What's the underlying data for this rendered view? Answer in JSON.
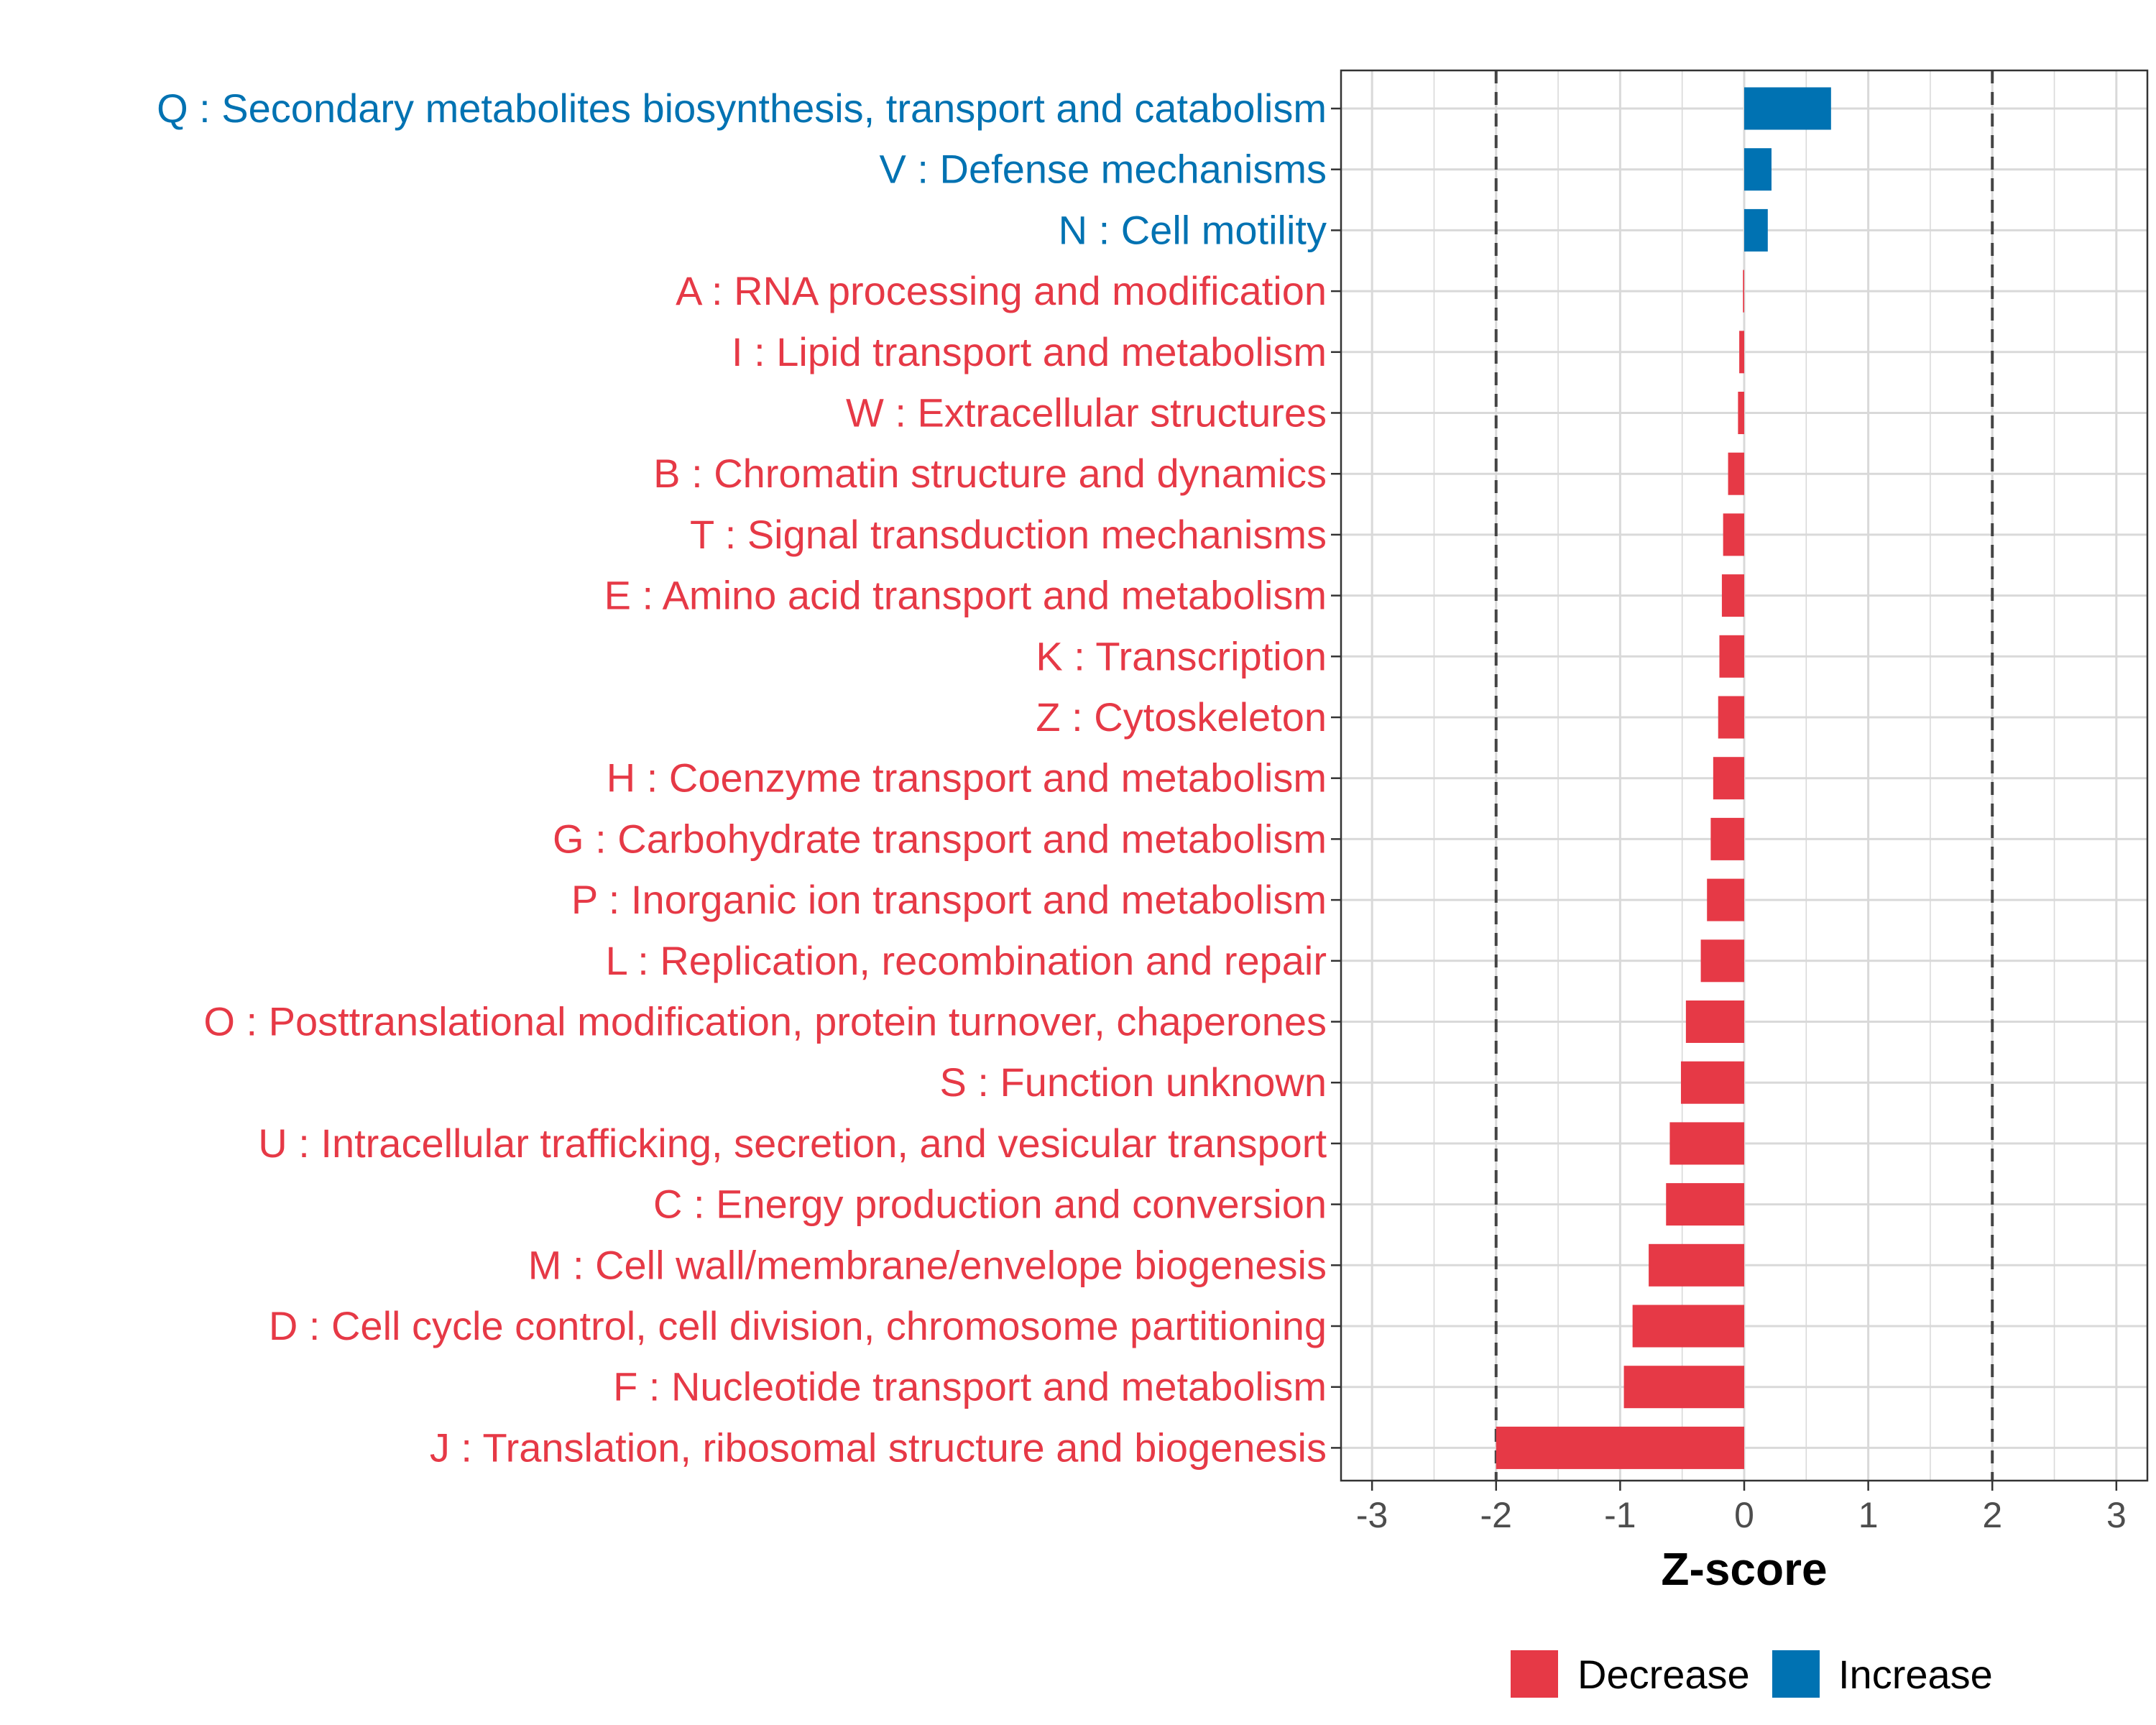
{
  "chart_data": {
    "type": "bar",
    "orientation": "horizontal",
    "xlabel": "Z-score",
    "xlim": [
      -3.25,
      3.25
    ],
    "xticks": [
      -3,
      -2,
      -1,
      0,
      1,
      2,
      3
    ],
    "xtick_labels": [
      "-3",
      "-2",
      "-1",
      "0",
      "1",
      "2",
      "3"
    ],
    "threshold_lines": [
      -2,
      2
    ],
    "grid": true,
    "colors": {
      "Decrease": "#e63946",
      "Increase": "#0072b2",
      "threshold": "#444444",
      "grid": "#d9d9d9"
    },
    "legend": {
      "position": "bottom",
      "items": [
        {
          "label": "Decrease",
          "color": "#e63946"
        },
        {
          "label": "Increase",
          "color": "#0072b2"
        }
      ]
    },
    "categories": [
      "Q : Secondary metabolites biosynthesis, transport and catabolism",
      "V : Defense mechanisms",
      "N : Cell motility",
      "A : RNA processing and modification",
      "I : Lipid transport and metabolism",
      "W : Extracellular structures",
      "B : Chromatin structure and dynamics",
      "T : Signal transduction mechanisms",
      "E : Amino acid transport and metabolism",
      "K : Transcription",
      "Z : Cytoskeleton",
      "H : Coenzyme transport and metabolism",
      "G : Carbohydrate transport and metabolism",
      "P : Inorganic ion transport and metabolism",
      "L : Replication, recombination and repair",
      "O : Posttranslational modification, protein turnover, chaperones",
      "S : Function unknown",
      "U : Intracellular trafficking, secretion, and vesicular transport",
      "C : Energy production and conversion",
      "M : Cell wall/membrane/envelope biogenesis",
      "D : Cell cycle control, cell division, chromosome partitioning",
      "F : Nucleotide transport and metabolism",
      "J : Translation, ribosomal structure and biogenesis"
    ],
    "values": [
      0.7,
      0.22,
      0.19,
      -0.01,
      -0.04,
      -0.05,
      -0.13,
      -0.17,
      -0.18,
      -0.2,
      -0.21,
      -0.25,
      -0.27,
      -0.3,
      -0.35,
      -0.47,
      -0.51,
      -0.6,
      -0.63,
      -0.77,
      -0.9,
      -0.97,
      -2.0
    ],
    "groups": [
      "Increase",
      "Increase",
      "Increase",
      "Decrease",
      "Decrease",
      "Decrease",
      "Decrease",
      "Decrease",
      "Decrease",
      "Decrease",
      "Decrease",
      "Decrease",
      "Decrease",
      "Decrease",
      "Decrease",
      "Decrease",
      "Decrease",
      "Decrease",
      "Decrease",
      "Decrease",
      "Decrease",
      "Decrease",
      "Decrease"
    ]
  }
}
